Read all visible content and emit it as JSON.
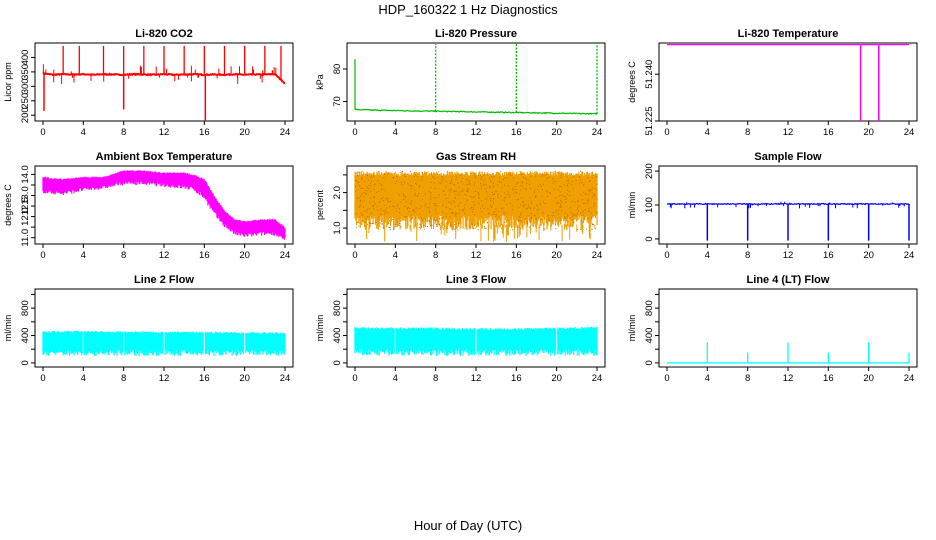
{
  "title": "HDP_160322  1 Hz Diagnostics",
  "xlabel": "Hour of Day (UTC)",
  "chart_data": [
    {
      "type": "line",
      "title": "Li-820 CO2",
      "ylabel": "Licor ppm",
      "color": "#ff0000",
      "x_ticks": [
        0,
        4,
        8,
        12,
        16,
        20,
        24
      ],
      "xlim": [
        0,
        24
      ],
      "y_ticks": [
        200,
        250,
        300,
        350,
        400
      ],
      "ylim": [
        180,
        450
      ],
      "x": [
        0,
        1,
        2,
        3,
        4,
        5,
        6,
        7,
        8,
        9,
        10,
        11,
        12,
        13,
        14,
        15,
        16,
        17,
        18,
        19,
        20,
        21,
        22,
        23,
        24
      ],
      "values": [
        345,
        340,
        342,
        341,
        342,
        340,
        342,
        341,
        340,
        342,
        341,
        340,
        342,
        340,
        341,
        342,
        340,
        341,
        340,
        342,
        340,
        341,
        341,
        342,
        310
      ],
      "spikes_up": [
        2,
        3.6,
        6,
        8,
        10,
        12,
        14,
        16,
        18,
        20,
        22,
        23.6
      ],
      "spike_up_max": 440,
      "spikes_down": [
        0.1,
        8,
        16.1
      ],
      "spike_down_min": [
        215,
        220,
        180
      ]
    },
    {
      "type": "line",
      "title": "Li-820 Pressure",
      "ylabel": "kPa",
      "color": "#00bb00",
      "x_ticks": [
        0,
        4,
        8,
        12,
        16,
        20,
        24
      ],
      "xlim": [
        0,
        24
      ],
      "y_ticks": [
        70,
        80
      ],
      "ylim": [
        64,
        88
      ],
      "x": [
        0,
        4,
        8,
        12,
        16,
        20,
        24
      ],
      "values": [
        67.5,
        67.2,
        67.0,
        66.8,
        66.6,
        66.4,
        66.2
      ],
      "spikes_up": [
        8,
        16,
        24
      ],
      "spike_up_max": 88,
      "start_value": 83
    },
    {
      "type": "line",
      "title": "Li-820 Temperature",
      "ylabel": "degrees C",
      "color": "#ff00ff",
      "x_ticks": [
        0,
        4,
        8,
        12,
        16,
        20,
        24
      ],
      "xlim": [
        0,
        24
      ],
      "y_ticks": [
        51.225,
        51.24
      ],
      "y_tick_labels": [
        "51.225",
        "51.240"
      ],
      "ylim": [
        51.225,
        51.25
      ],
      "x": [
        0,
        24
      ],
      "values": [
        51.2495,
        51.2495
      ],
      "spikes_down": [
        19.2,
        21
      ],
      "spike_down_min": [
        51.225,
        51.225
      ]
    },
    {
      "type": "area",
      "title": "Ambient Box Temperature",
      "ylabel": "degrees C",
      "color": "#ff00ff",
      "x_ticks": [
        0,
        4,
        8,
        12,
        16,
        20,
        24
      ],
      "xlim": [
        0,
        24
      ],
      "y_ticks": [
        11.0,
        11.5,
        12.0,
        12.5,
        13.0,
        13.5,
        14.0
      ],
      "y_tick_labels": [
        "11.0",
        "",
        "12.0",
        "12.5",
        "13.0",
        "",
        "14.0"
      ],
      "ylim": [
        10.7,
        14.4
      ],
      "x": [
        0,
        2,
        4,
        6,
        8,
        10,
        12,
        14,
        15,
        16,
        17,
        18,
        19,
        20,
        22,
        23,
        24
      ],
      "upper": [
        13.9,
        13.8,
        13.9,
        13.9,
        14.2,
        14.2,
        14.1,
        14.1,
        14.0,
        13.8,
        13.0,
        12.3,
        11.9,
        11.8,
        11.9,
        11.9,
        11.5
      ],
      "lower": [
        13.1,
        13.0,
        13.2,
        13.3,
        13.5,
        13.5,
        13.4,
        13.3,
        13.2,
        12.8,
        12.0,
        11.5,
        11.1,
        11.0,
        11.1,
        11.1,
        10.8
      ]
    },
    {
      "type": "area",
      "title": "Gas Stream RH",
      "ylabel": "percent",
      "color": "#f0a000",
      "x_ticks": [
        0,
        4,
        8,
        12,
        16,
        20,
        24
      ],
      "xlim": [
        0,
        24
      ],
      "y_ticks": [
        1.0,
        1.5,
        2.0,
        2.5
      ],
      "y_tick_labels": [
        "1.0",
        "",
        "2.0",
        ""
      ],
      "ylim": [
        0.55,
        2.75
      ],
      "x": [
        0,
        24
      ],
      "upper": [
        2.6,
        2.6
      ],
      "lower": [
        0.95,
        0.95
      ]
    },
    {
      "type": "line",
      "title": "Sample Flow",
      "ylabel": "ml/min",
      "color": "#0000ff",
      "x_ticks": [
        0,
        4,
        8,
        12,
        16,
        20,
        24
      ],
      "xlim": [
        0,
        24
      ],
      "y_ticks": [
        0,
        100,
        200
      ],
      "ylim": [
        -15,
        215
      ],
      "x": [
        0,
        24
      ],
      "values": [
        103,
        103
      ],
      "spikes_down": [
        4,
        8,
        12,
        16,
        20,
        24
      ],
      "spike_down_min": [
        -5,
        -5,
        -5,
        -5,
        -5,
        -5
      ]
    },
    {
      "type": "area",
      "title": "Line 2 Flow",
      "ylabel": "ml/min",
      "color": "#00ffff",
      "x_ticks": [
        0,
        4,
        8,
        12,
        16,
        20,
        24
      ],
      "xlim": [
        0,
        24
      ],
      "y_ticks": [
        0,
        200,
        400,
        600,
        800,
        1000
      ],
      "y_tick_labels": [
        "0",
        "",
        "400",
        "",
        "800",
        ""
      ],
      "ylim": [
        -60,
        1080
      ],
      "x": [
        0,
        4,
        8,
        12,
        16,
        20,
        24
      ],
      "upper": [
        470,
        470,
        465,
        460,
        460,
        455,
        450
      ],
      "lower": [
        100,
        100,
        100,
        100,
        100,
        100,
        100
      ],
      "gaps": [
        4,
        8,
        12,
        16,
        20
      ]
    },
    {
      "type": "area",
      "title": "Line 3 Flow",
      "ylabel": "ml/min",
      "color": "#00ffff",
      "x_ticks": [
        0,
        4,
        8,
        12,
        16,
        20,
        24
      ],
      "xlim": [
        0,
        24
      ],
      "y_ticks": [
        0,
        200,
        400,
        600,
        800,
        1000
      ],
      "y_tick_labels": [
        "0",
        "",
        "400",
        "",
        "800",
        ""
      ],
      "ylim": [
        -60,
        1080
      ],
      "x": [
        0,
        4,
        8,
        12,
        16,
        20,
        24
      ],
      "upper": [
        530,
        520,
        520,
        510,
        510,
        520,
        540
      ],
      "lower": [
        100,
        100,
        100,
        100,
        100,
        100,
        100
      ],
      "gaps": [
        4,
        12,
        20
      ]
    },
    {
      "type": "line",
      "title": "Line 4 (LT) Flow",
      "ylabel": "ml/min",
      "color": "#00ffff",
      "x_ticks": [
        0,
        4,
        8,
        12,
        16,
        20,
        24
      ],
      "xlim": [
        0,
        24
      ],
      "y_ticks": [
        0,
        200,
        400,
        600,
        800,
        1000
      ],
      "y_tick_labels": [
        "0",
        "",
        "400",
        "",
        "800",
        ""
      ],
      "ylim": [
        -60,
        1080
      ],
      "x": [
        0,
        24
      ],
      "values": [
        0,
        0
      ],
      "spikes_up": [
        4,
        8,
        12,
        16,
        20,
        24
      ],
      "spike_up_values": [
        300,
        150,
        300,
        150,
        300,
        150
      ]
    }
  ]
}
